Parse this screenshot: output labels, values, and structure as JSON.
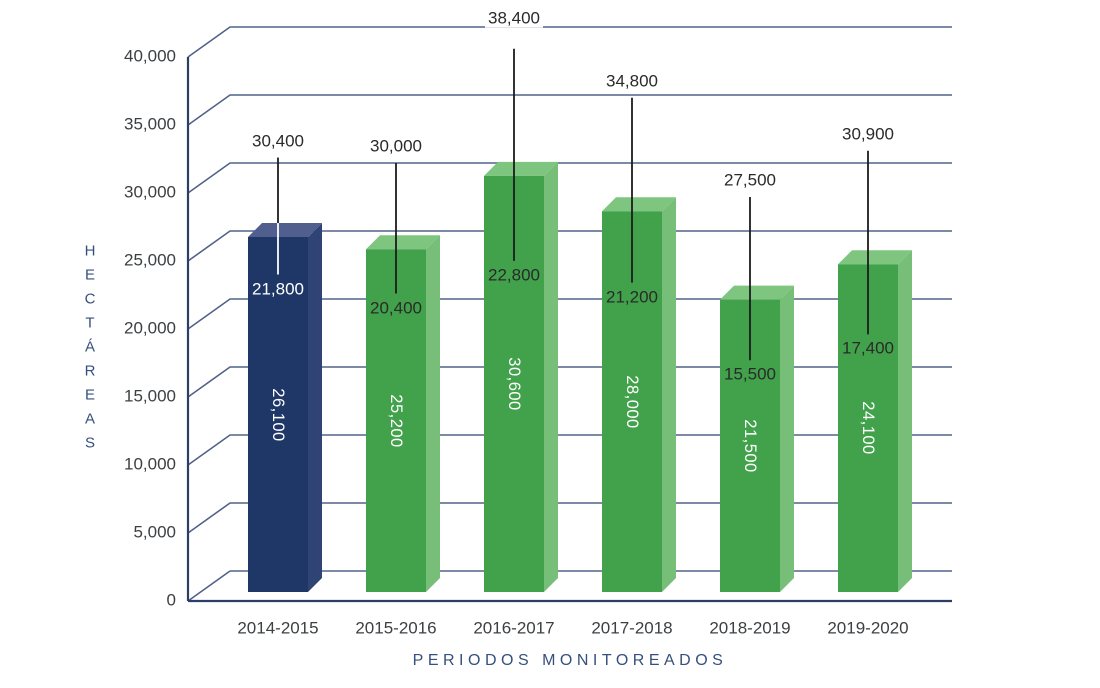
{
  "chart_data": {
    "type": "bar",
    "variant": "3d-column-chart-with-range-lines",
    "title": "",
    "xlabel": "PERIODOS MONITOREADOS",
    "ylabel": "HECTÁREAS",
    "categories": [
      "2014-2015",
      "2015-2016",
      "2016-2017",
      "2017-2018",
      "2018-2019",
      "2019-2020"
    ],
    "values": [
      26100,
      25200,
      30600,
      28000,
      21500,
      24100
    ],
    "value_labels": [
      "26,100",
      "25,200",
      "30,600",
      "28,000",
      "21,500",
      "24,100"
    ],
    "range_high": {
      "values": [
        30400,
        30000,
        38400,
        34800,
        27500,
        30900
      ],
      "labels": [
        "30,400",
        "30,000",
        "38,400",
        "34,800",
        "27,500",
        "30,900"
      ]
    },
    "range_low": {
      "values": [
        21800,
        20400,
        22800,
        21200,
        15500,
        17400
      ],
      "labels": [
        "21,800",
        "20,400",
        "22,800",
        "21,200",
        "15,500",
        "17,400"
      ]
    },
    "ylim": [
      0,
      40000
    ],
    "ytick_step": 5000,
    "ytick_labels": [
      "0",
      "5,000",
      "10,000",
      "15,000",
      "20,000",
      "25,000",
      "30,000",
      "35,000",
      "40,000"
    ],
    "grid": true,
    "legend": false,
    "bar_palette": [
      "navy",
      "green",
      "green",
      "green",
      "green",
      "green"
    ],
    "colors": {
      "navy": {
        "front": "#1F3767",
        "top": "#505F8E",
        "side": "#2F4374"
      },
      "green": {
        "front": "#41A24B",
        "top": "#7EC57F",
        "side": "#77BE79"
      },
      "gridline": "#51628A",
      "axis": "#2C3D66",
      "range_line": "#1C1C1C",
      "range_line_on_navy": "#FFFFFF",
      "tick_text": "#3D4043",
      "annotation_text": "#2A2A2A",
      "bar_value_text": "#FFFFFF",
      "axis_title_text": "#35507D",
      "background": "#FFFFFF"
    }
  }
}
